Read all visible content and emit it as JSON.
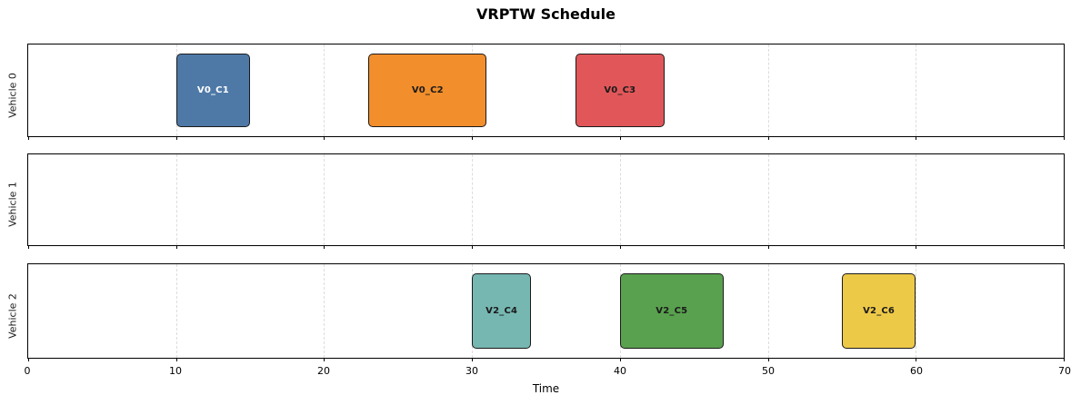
{
  "chart_data": {
    "type": "bar",
    "subtype": "gantt",
    "title": "VRPTW Schedule",
    "xlabel": "Time",
    "xlim": [
      0,
      70
    ],
    "xticks": [
      0,
      10,
      20,
      30,
      40,
      50,
      60,
      70
    ],
    "grid": true,
    "legend": false,
    "rows": [
      {
        "label": "Vehicle 0",
        "tasks": [
          {
            "name": "V0_C1",
            "start": 10,
            "end": 15,
            "color": "#4e79a7",
            "text_color": "#ffffff"
          },
          {
            "name": "V0_C2",
            "start": 23,
            "end": 31,
            "color": "#f28e2b",
            "text_color": "#1a1a1a"
          },
          {
            "name": "V0_C3",
            "start": 37,
            "end": 43,
            "color": "#e15759",
            "text_color": "#1a1a1a"
          }
        ]
      },
      {
        "label": "Vehicle 1",
        "tasks": []
      },
      {
        "label": "Vehicle 2",
        "tasks": [
          {
            "name": "V2_C4",
            "start": 30,
            "end": 34,
            "color": "#76b7b2",
            "text_color": "#1a1a1a"
          },
          {
            "name": "V2_C5",
            "start": 40,
            "end": 47,
            "color": "#59a14f",
            "text_color": "#1a1a1a"
          },
          {
            "name": "V2_C6",
            "start": 55,
            "end": 60,
            "color": "#edc948",
            "text_color": "#1a1a1a"
          }
        ]
      }
    ],
    "colors": {
      "bar_edge": "#1a1a1a",
      "grid": "#dcdcdc",
      "spine": "#000000",
      "background": "#ffffff"
    }
  }
}
